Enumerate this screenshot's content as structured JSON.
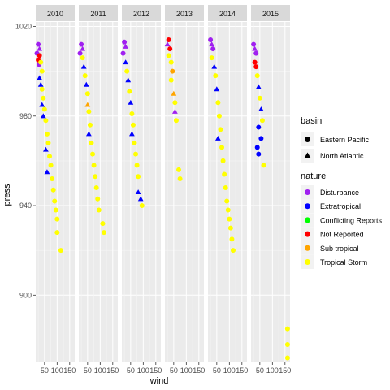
{
  "chart_data": {
    "type": "scatter",
    "title": "",
    "xlabel": "wind",
    "ylabel": "press",
    "facet_labels": [
      "2010",
      "2011",
      "2012",
      "2013",
      "2014",
      "2015"
    ],
    "x_ticks": [
      "50",
      "100",
      "150"
    ],
    "y_ticks": [
      "900",
      "940",
      "980",
      "1020"
    ],
    "xlim": [
      15,
      170
    ],
    "ylim": [
      870,
      1022
    ],
    "grid": true,
    "legend_placement": "right",
    "legends": {
      "basin": {
        "title": "basin",
        "entries": [
          {
            "label": "Eastern Pacific",
            "shape": "circle"
          },
          {
            "label": "North Atlantic",
            "shape": "triangle"
          }
        ]
      },
      "nature": {
        "title": "nature",
        "entries": [
          {
            "label": "Disturbance",
            "color": "#A020F0"
          },
          {
            "label": "Extratropical",
            "color": "#0000FF"
          },
          {
            "label": "Conflicting Reports",
            "color": "#00FF00"
          },
          {
            "label": "Not Reported",
            "color": "#FF0000"
          },
          {
            "label": "Sub tropical",
            "color": "#FFA500"
          },
          {
            "label": "Tropical Storm",
            "color": "#FFFF00"
          }
        ]
      }
    },
    "panels": [
      {
        "year": "2010",
        "points": [
          [
            25,
            1012,
            "Disturbance",
            "circle"
          ],
          [
            30,
            1010,
            "Disturbance",
            "triangle"
          ],
          [
            20,
            1008,
            "Disturbance",
            "circle"
          ],
          [
            25,
            1005,
            "Not Reported",
            "circle"
          ],
          [
            30,
            1007,
            "Not Reported",
            "circle"
          ],
          [
            28,
            1003,
            "Disturbance",
            "circle"
          ],
          [
            35,
            1004,
            "Tropical Storm",
            "circle"
          ],
          [
            40,
            1000,
            "Tropical Storm",
            "circle"
          ],
          [
            30,
            997,
            "Extratropical",
            "triangle"
          ],
          [
            35,
            994,
            "Extratropical",
            "triangle"
          ],
          [
            40,
            992,
            "Tropical Storm",
            "circle"
          ],
          [
            45,
            988,
            "Tropical Storm",
            "circle"
          ],
          [
            40,
            985,
            "Extratropical",
            "triangle"
          ],
          [
            50,
            983,
            "Tropical Storm",
            "circle"
          ],
          [
            55,
            978,
            "Tropical Storm",
            "circle"
          ],
          [
            45,
            980,
            "Extratropical",
            "triangle"
          ],
          [
            60,
            972,
            "Tropical Storm",
            "circle"
          ],
          [
            65,
            968,
            "Tropical Storm",
            "circle"
          ],
          [
            55,
            965,
            "Extratropical",
            "triangle"
          ],
          [
            70,
            962,
            "Tropical Storm",
            "circle"
          ],
          [
            75,
            958,
            "Tropical Storm",
            "circle"
          ],
          [
            60,
            955,
            "Extratropical",
            "triangle"
          ],
          [
            80,
            952,
            "Tropical Storm",
            "circle"
          ],
          [
            85,
            947,
            "Tropical Storm",
            "circle"
          ],
          [
            90,
            942,
            "Tropical Storm",
            "circle"
          ],
          [
            95,
            938,
            "Tropical Storm",
            "circle"
          ],
          [
            100,
            934,
            "Tropical Storm",
            "circle"
          ],
          [
            100,
            928,
            "Tropical Storm",
            "circle"
          ],
          [
            115,
            920,
            "Tropical Storm",
            "circle"
          ]
        ]
      },
      {
        "year": "2011",
        "points": [
          [
            25,
            1012,
            "Disturbance",
            "circle"
          ],
          [
            30,
            1010,
            "Disturbance",
            "triangle"
          ],
          [
            20,
            1008,
            "Disturbance",
            "circle"
          ],
          [
            30,
            1006,
            "Tropical Storm",
            "circle"
          ],
          [
            35,
            1002,
            "Extratropical",
            "triangle"
          ],
          [
            40,
            998,
            "Tropical Storm",
            "circle"
          ],
          [
            45,
            994,
            "Extratropical",
            "triangle"
          ],
          [
            50,
            990,
            "Tropical Storm",
            "circle"
          ],
          [
            50,
            985,
            "Sub tropical",
            "triangle"
          ],
          [
            55,
            982,
            "Tropical Storm",
            "circle"
          ],
          [
            60,
            976,
            "Tropical Storm",
            "circle"
          ],
          [
            55,
            972,
            "Extratropical",
            "triangle"
          ],
          [
            65,
            968,
            "Tropical Storm",
            "circle"
          ],
          [
            70,
            963,
            "Tropical Storm",
            "circle"
          ],
          [
            75,
            958,
            "Tropical Storm",
            "circle"
          ],
          [
            80,
            953,
            "Tropical Storm",
            "circle"
          ],
          [
            85,
            948,
            "Tropical Storm",
            "circle"
          ],
          [
            90,
            943,
            "Tropical Storm",
            "circle"
          ],
          [
            95,
            938,
            "Tropical Storm",
            "circle"
          ],
          [
            110,
            932,
            "Tropical Storm",
            "circle"
          ],
          [
            115,
            928,
            "Tropical Storm",
            "circle"
          ]
        ]
      },
      {
        "year": "2012",
        "points": [
          [
            25,
            1013,
            "Disturbance",
            "circle"
          ],
          [
            30,
            1011,
            "Disturbance",
            "triangle"
          ],
          [
            20,
            1008,
            "Disturbance",
            "circle"
          ],
          [
            30,
            1004,
            "Extratropical",
            "triangle"
          ],
          [
            35,
            1000,
            "Tropical Storm",
            "circle"
          ],
          [
            40,
            996,
            "Extratropical",
            "triangle"
          ],
          [
            45,
            991,
            "Tropical Storm",
            "circle"
          ],
          [
            50,
            986,
            "Extratropical",
            "triangle"
          ],
          [
            55,
            981,
            "Tropical Storm",
            "circle"
          ],
          [
            60,
            976,
            "Tropical Storm",
            "circle"
          ],
          [
            55,
            972,
            "Extratropical",
            "triangle"
          ],
          [
            65,
            968,
            "Tropical Storm",
            "circle"
          ],
          [
            70,
            963,
            "Tropical Storm",
            "circle"
          ],
          [
            75,
            958,
            "Tropical Storm",
            "circle"
          ],
          [
            80,
            953,
            "Tropical Storm",
            "circle"
          ],
          [
            80,
            946,
            "Extratropical",
            "triangle"
          ],
          [
            90,
            943,
            "Extratropical",
            "triangle"
          ],
          [
            95,
            940,
            "Tropical Storm",
            "circle"
          ]
        ]
      },
      {
        "year": "2013",
        "points": [
          [
            30,
            1014,
            "Not Reported",
            "circle"
          ],
          [
            25,
            1012,
            "Disturbance",
            "triangle"
          ],
          [
            35,
            1010,
            "Not Reported",
            "circle"
          ],
          [
            30,
            1007,
            "Tropical Storm",
            "circle"
          ],
          [
            40,
            1004,
            "Tropical Storm",
            "circle"
          ],
          [
            45,
            1000,
            "Sub tropical",
            "circle"
          ],
          [
            40,
            996,
            "Tropical Storm",
            "circle"
          ],
          [
            50,
            990,
            "Sub tropical",
            "triangle"
          ],
          [
            55,
            986,
            "Tropical Storm",
            "circle"
          ],
          [
            55,
            982,
            "Disturbance",
            "triangle"
          ],
          [
            60,
            978,
            "Tropical Storm",
            "circle"
          ],
          [
            70,
            956,
            "Tropical Storm",
            "circle"
          ],
          [
            75,
            952,
            "Tropical Storm",
            "circle"
          ]
        ]
      },
      {
        "year": "2014",
        "points": [
          [
            25,
            1014,
            "Disturbance",
            "circle"
          ],
          [
            30,
            1012,
            "Disturbance",
            "triangle"
          ],
          [
            35,
            1010,
            "Disturbance",
            "circle"
          ],
          [
            30,
            1006,
            "Tropical Storm",
            "circle"
          ],
          [
            40,
            1002,
            "Extratropical",
            "triangle"
          ],
          [
            45,
            998,
            "Tropical Storm",
            "circle"
          ],
          [
            50,
            992,
            "Extratropical",
            "triangle"
          ],
          [
            55,
            986,
            "Tropical Storm",
            "circle"
          ],
          [
            60,
            980,
            "Tropical Storm",
            "circle"
          ],
          [
            65,
            974,
            "Tropical Storm",
            "circle"
          ],
          [
            55,
            970,
            "Extratropical",
            "triangle"
          ],
          [
            70,
            966,
            "Tropical Storm",
            "circle"
          ],
          [
            75,
            960,
            "Tropical Storm",
            "circle"
          ],
          [
            80,
            954,
            "Tropical Storm",
            "circle"
          ],
          [
            85,
            948,
            "Tropical Storm",
            "circle"
          ],
          [
            90,
            942,
            "Tropical Storm",
            "circle"
          ],
          [
            95,
            938,
            "Tropical Storm",
            "circle"
          ],
          [
            100,
            934,
            "Tropical Storm",
            "circle"
          ],
          [
            105,
            930,
            "Tropical Storm",
            "circle"
          ],
          [
            110,
            925,
            "Tropical Storm",
            "circle"
          ],
          [
            115,
            920,
            "Tropical Storm",
            "circle"
          ]
        ]
      },
      {
        "year": "2015",
        "points": [
          [
            25,
            1012,
            "Disturbance",
            "circle"
          ],
          [
            30,
            1010,
            "Disturbance",
            "triangle"
          ],
          [
            35,
            1008,
            "Disturbance",
            "circle"
          ],
          [
            30,
            1004,
            "Not Reported",
            "circle"
          ],
          [
            35,
            1002,
            "Not Reported",
            "circle"
          ],
          [
            40,
            998,
            "Tropical Storm",
            "circle"
          ],
          [
            45,
            993,
            "Extratropical",
            "triangle"
          ],
          [
            50,
            988,
            "Tropical Storm",
            "circle"
          ],
          [
            55,
            983,
            "Extratropical",
            "triangle"
          ],
          [
            60,
            978,
            "Tropical Storm",
            "circle"
          ],
          [
            45,
            975,
            "Extratropical",
            "circle"
          ],
          [
            55,
            970,
            "Extratropical",
            "circle"
          ],
          [
            40,
            966,
            "Extratropical",
            "circle"
          ],
          [
            45,
            963,
            "Extratropical",
            "circle"
          ],
          [
            65,
            958,
            "Tropical Storm",
            "circle"
          ],
          [
            160,
            885,
            "Tropical Storm",
            "circle"
          ],
          [
            160,
            878,
            "Tropical Storm",
            "circle"
          ],
          [
            160,
            872,
            "Tropical Storm",
            "circle"
          ]
        ]
      }
    ]
  }
}
